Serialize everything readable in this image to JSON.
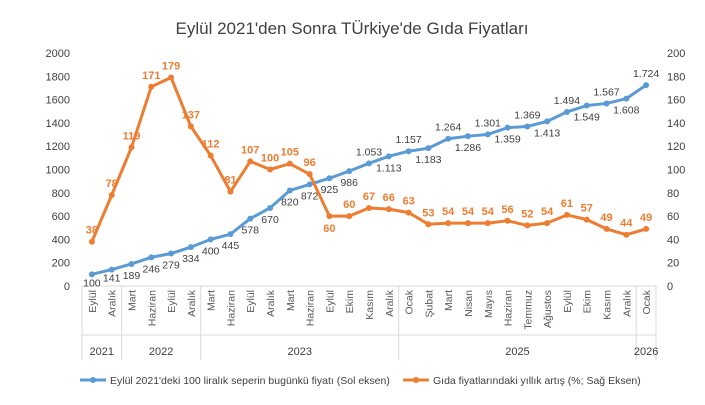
{
  "chart_data": {
    "type": "line",
    "title": "Eylül 2021'den Sonra TÜrkiye'de Gıda Fiyatları",
    "categories": [
      "Eylül",
      "Aralık",
      "Mart",
      "Haziran",
      "Eylül",
      "Aralık",
      "Mart",
      "Haziran",
      "Eylül",
      "Aralık",
      "Mart",
      "Haziran",
      "Eylül",
      "Ekim",
      "Kasım",
      "Aralık",
      "Ocak",
      "Şubat",
      "Mart",
      "Nisan",
      "Mayıs",
      "Haziran",
      "Temmuz",
      "Ağustos",
      "Eylül",
      "Ekim",
      "Kasım",
      "Aralık",
      "Ocak"
    ],
    "year_groups": [
      {
        "label": "2021",
        "count": 2
      },
      {
        "label": "2022",
        "count": 4
      },
      {
        "label": "2023",
        "count": 10
      },
      {
        "label": "2025",
        "count": 12
      },
      {
        "label": "2026",
        "count": 1
      }
    ],
    "series": [
      {
        "name": "Eylül 2021'deki 100 liralık seperin bugünkü fiyatı (Sol eksen)",
        "axis": "left",
        "color": "#5B9BD5",
        "values": [
          100,
          141,
          189,
          246,
          279,
          334,
          400,
          445,
          578,
          670,
          820,
          872,
          925,
          986,
          1053,
          1113,
          1157,
          1183,
          1264,
          1286,
          1301,
          1359,
          1369,
          1413,
          1494,
          1549,
          1567,
          1608,
          1724
        ],
        "labels": [
          "100",
          "141",
          "189",
          "246",
          "279",
          "334",
          "400",
          "445",
          "578",
          "670",
          "820",
          "872",
          "925",
          "986",
          "1.053",
          "1.113",
          "1.157",
          "1.183",
          "1.264",
          "1.286",
          "1.301",
          "1.359",
          "1.369",
          "1.413",
          "1.494",
          "1.549",
          "1.567",
          "1.608",
          "1.724"
        ]
      },
      {
        "name": "Gıda fiyatlarındaki yıllık artış (%; Sağ Eksen)",
        "axis": "right",
        "color": "#ED7D31",
        "values": [
          38,
          78,
          119,
          171,
          179,
          137,
          112,
          81,
          107,
          100,
          105,
          96,
          60,
          60,
          67,
          66,
          63,
          53,
          54,
          54,
          54,
          56,
          52,
          54,
          61,
          57,
          49,
          44,
          49
        ]
      }
    ],
    "ylim_left": [
      0,
      2000
    ],
    "yticks_left": [
      "0",
      "200",
      "400",
      "600",
      "800",
      "1000",
      "1200",
      "1400",
      "1600",
      "1800",
      "2000"
    ],
    "ylim_right": [
      0,
      200
    ],
    "yticks_right": [
      "0",
      "20",
      "40",
      "60",
      "80",
      "100",
      "120",
      "140",
      "160",
      "180",
      "200"
    ],
    "legend_position": "bottom"
  }
}
